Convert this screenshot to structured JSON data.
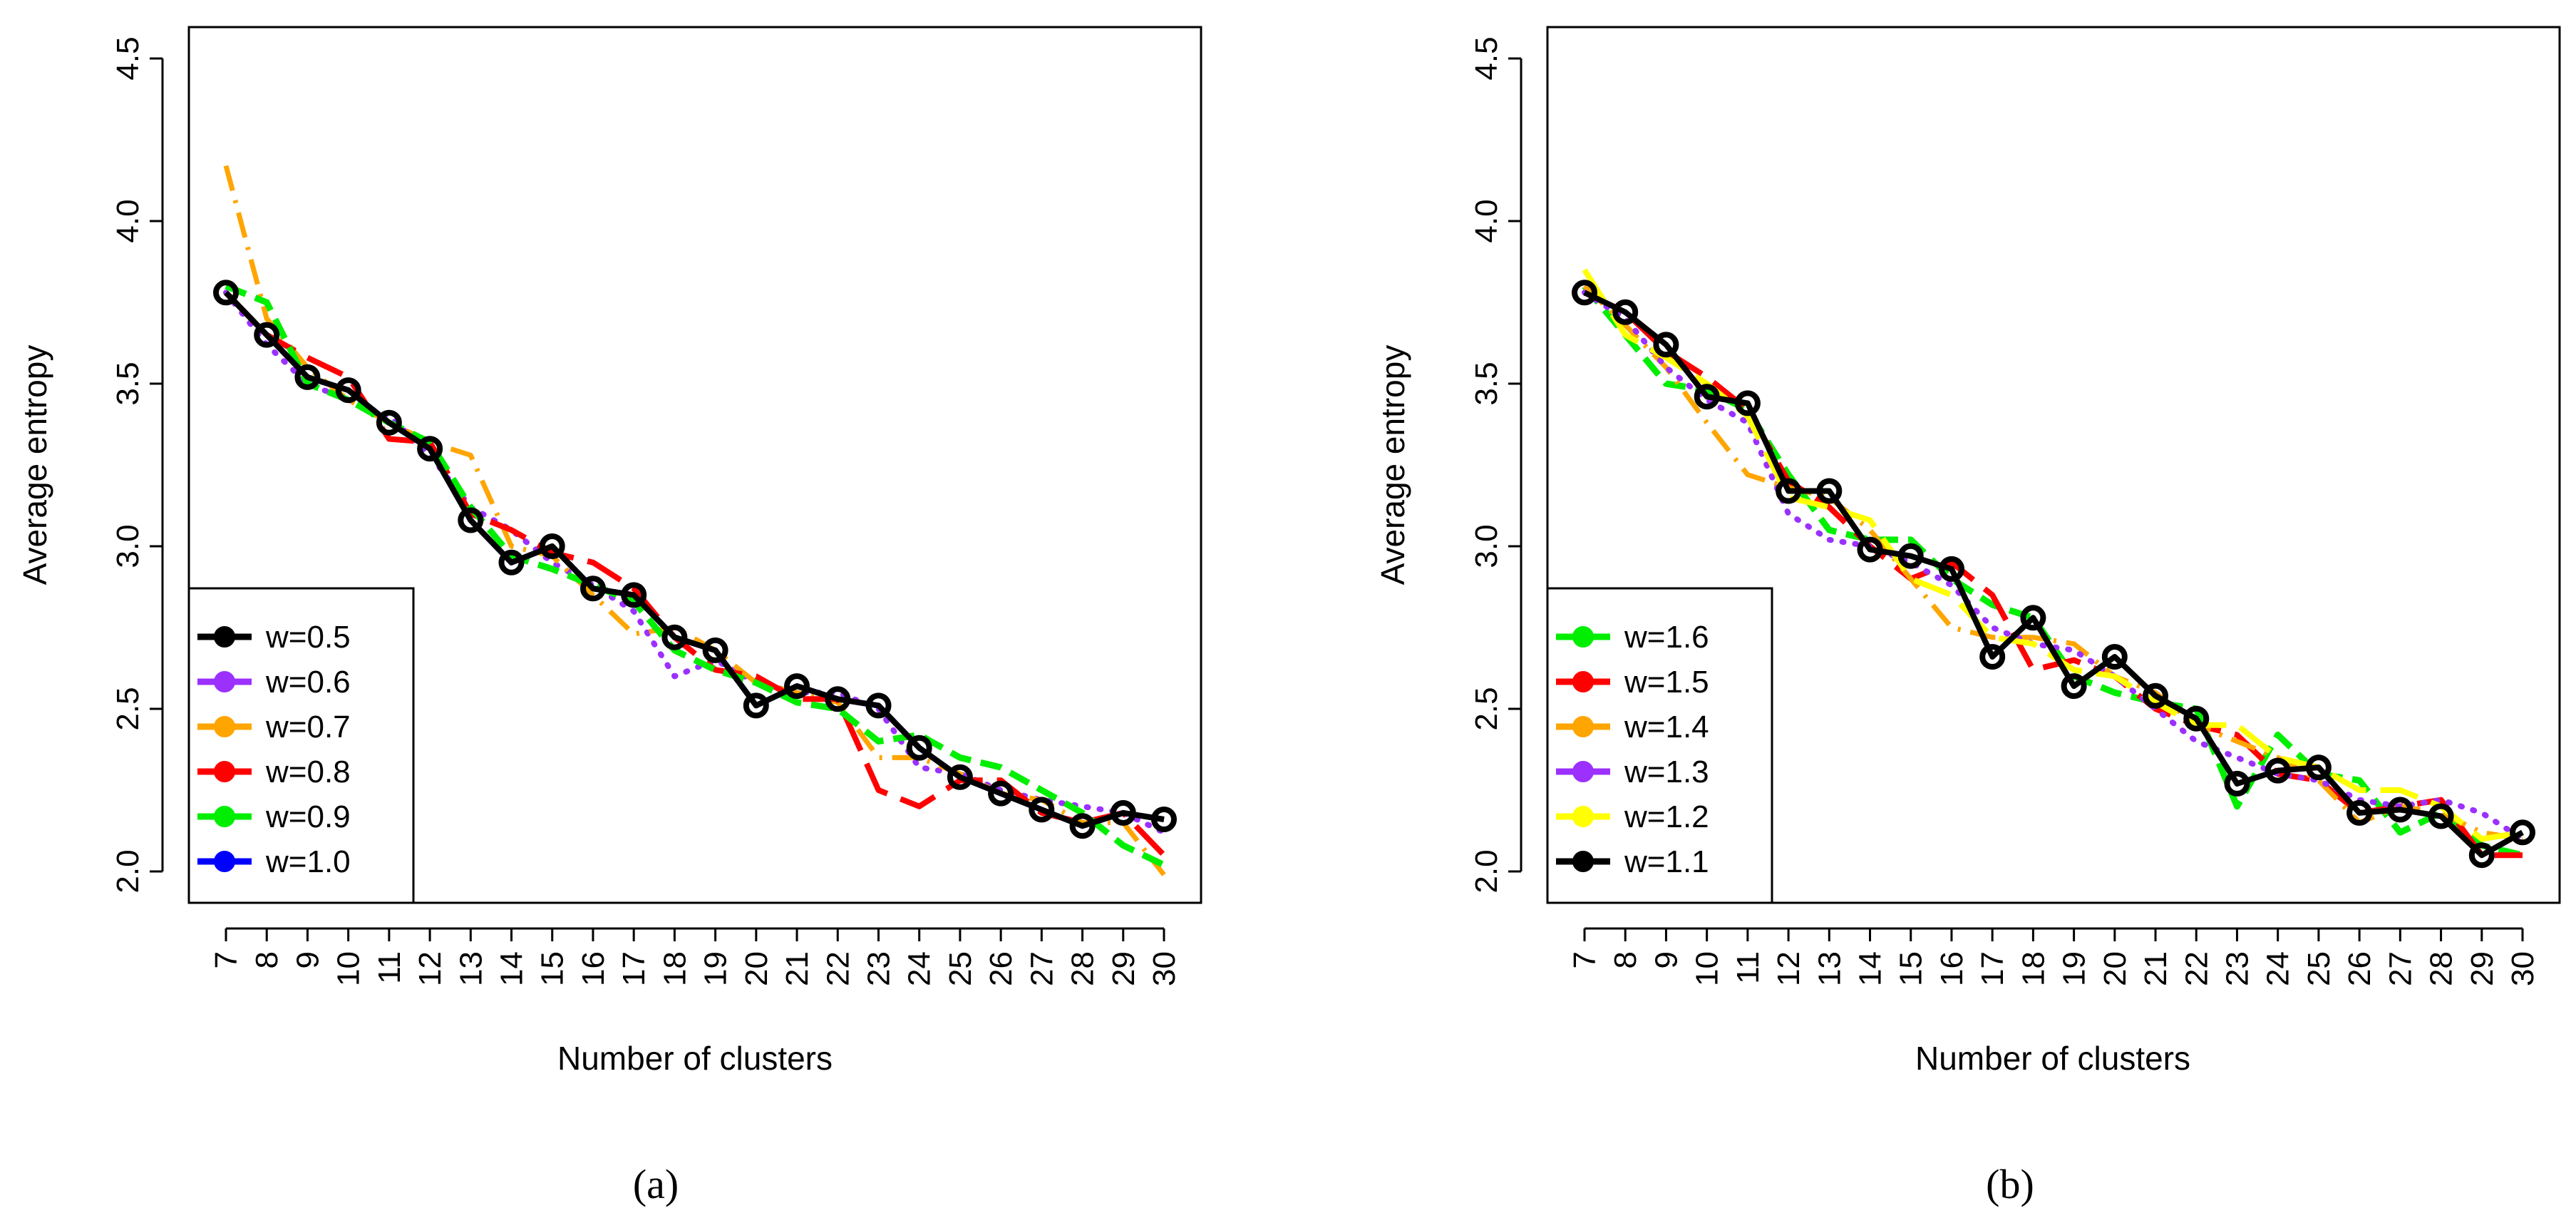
{
  "chart_data": [
    {
      "type": "line",
      "panel_label": "(a)",
      "xlabel": "Number of clusters",
      "ylabel": "Average entropy",
      "x": [
        7,
        8,
        9,
        10,
        11,
        12,
        13,
        14,
        15,
        16,
        17,
        18,
        19,
        20,
        21,
        22,
        23,
        24,
        25,
        26,
        27,
        28,
        29,
        30
      ],
      "x_tick_labels": [
        "7",
        "8",
        "9",
        "10",
        "11",
        "12",
        "13",
        "14",
        "15",
        "16",
        "17",
        "18",
        "19",
        "20",
        "21",
        "22",
        "23",
        "24",
        "25",
        "26",
        "27",
        "28",
        "29",
        "30"
      ],
      "xlim": [
        7,
        30
      ],
      "ylim": [
        2.0,
        4.5
      ],
      "y_ticks": [
        2.0,
        2.5,
        3.0,
        3.5,
        4.0,
        4.5
      ],
      "y_tick_labels": [
        "2.0",
        "2.5",
        "3.0",
        "3.5",
        "4.0",
        "4.5"
      ],
      "legend_position": "bottom-left",
      "series": [
        {
          "name": "w=1.0",
          "color": "#0000ff",
          "style": "solid",
          "markers": false,
          "values": [
            3.78,
            3.65,
            3.52,
            3.48,
            3.38,
            3.3,
            3.08,
            2.95,
            3.0,
            2.87,
            2.85,
            2.72,
            2.68,
            2.51,
            2.57,
            2.53,
            2.51,
            2.38,
            2.29,
            2.24,
            2.19,
            2.14,
            2.18,
            2.16
          ]
        },
        {
          "name": "w=0.6",
          "color": "#9b30ff",
          "style": "dotted",
          "markers": false,
          "values": [
            3.78,
            3.62,
            3.5,
            3.45,
            3.4,
            3.28,
            3.12,
            3.05,
            2.95,
            2.88,
            2.8,
            2.6,
            2.65,
            2.58,
            2.55,
            2.55,
            2.5,
            2.32,
            2.3,
            2.25,
            2.22,
            2.2,
            2.18,
            2.12
          ]
        },
        {
          "name": "w=0.7",
          "color": "#ffa500",
          "style": "dashdot",
          "markers": false,
          "values": [
            4.17,
            3.7,
            3.55,
            3.45,
            3.38,
            3.32,
            3.28,
            3.0,
            2.97,
            2.85,
            2.73,
            2.75,
            2.68,
            2.58,
            2.55,
            2.52,
            2.35,
            2.35,
            2.3,
            2.24,
            2.22,
            2.15,
            2.15,
            1.99
          ]
        },
        {
          "name": "w=0.8",
          "color": "#ff0000",
          "style": "longdash",
          "markers": false,
          "values": [
            3.78,
            3.65,
            3.58,
            3.52,
            3.33,
            3.32,
            3.1,
            3.05,
            2.98,
            2.95,
            2.87,
            2.72,
            2.62,
            2.6,
            2.53,
            2.53,
            2.25,
            2.2,
            2.28,
            2.28,
            2.18,
            2.15,
            2.18,
            2.05
          ]
        },
        {
          "name": "w=0.9",
          "color": "#00ee00",
          "style": "dashed",
          "markers": false,
          "values": [
            3.8,
            3.75,
            3.5,
            3.45,
            3.38,
            3.32,
            3.12,
            2.97,
            2.93,
            2.88,
            2.83,
            2.68,
            2.62,
            2.58,
            2.52,
            2.5,
            2.4,
            2.42,
            2.35,
            2.32,
            2.25,
            2.18,
            2.08,
            2.02
          ]
        },
        {
          "name": "w=0.5",
          "color": "#000000",
          "style": "solid",
          "markers": true,
          "values": [
            3.78,
            3.65,
            3.52,
            3.48,
            3.38,
            3.3,
            3.08,
            2.95,
            3.0,
            2.87,
            2.85,
            2.72,
            2.68,
            2.51,
            2.57,
            2.53,
            2.51,
            2.38,
            2.29,
            2.24,
            2.19,
            2.14,
            2.18,
            2.16
          ]
        }
      ],
      "legend": [
        {
          "name": "w=0.5",
          "color": "#000000"
        },
        {
          "name": "w=0.6",
          "color": "#9b30ff"
        },
        {
          "name": "w=0.7",
          "color": "#ffa500"
        },
        {
          "name": "w=0.8",
          "color": "#ff0000"
        },
        {
          "name": "w=0.9",
          "color": "#00ee00"
        },
        {
          "name": "w=1.0",
          "color": "#0000ff"
        }
      ]
    },
    {
      "type": "line",
      "panel_label": "(b)",
      "xlabel": "Number of clusters",
      "ylabel": "Average entropy",
      "x": [
        7,
        8,
        9,
        10,
        11,
        12,
        13,
        14,
        15,
        16,
        17,
        18,
        19,
        20,
        21,
        22,
        23,
        24,
        25,
        26,
        27,
        28,
        29,
        30
      ],
      "x_tick_labels": [
        "7",
        "8",
        "9",
        "10",
        "11",
        "12",
        "13",
        "14",
        "15",
        "16",
        "17",
        "18",
        "19",
        "20",
        "21",
        "22",
        "23",
        "24",
        "25",
        "26",
        "27",
        "28",
        "29",
        "30"
      ],
      "xlim": [
        7,
        30
      ],
      "ylim": [
        2.0,
        4.5
      ],
      "y_ticks": [
        2.0,
        2.5,
        3.0,
        3.5,
        4.0,
        4.5
      ],
      "y_tick_labels": [
        "2.0",
        "2.5",
        "3.0",
        "3.5",
        "4.0",
        "4.5"
      ],
      "legend_position": "bottom-left",
      "series": [
        {
          "name": "w=1.6",
          "color": "#00ee00",
          "style": "dashed",
          "markers": false,
          "values": [
            3.8,
            3.65,
            3.5,
            3.48,
            3.42,
            3.22,
            3.05,
            3.02,
            3.02,
            2.9,
            2.82,
            2.78,
            2.6,
            2.55,
            2.52,
            2.5,
            2.2,
            2.42,
            2.3,
            2.28,
            2.12,
            2.18,
            2.08,
            2.05
          ]
        },
        {
          "name": "w=1.5",
          "color": "#ff0000",
          "style": "longdash",
          "markers": false,
          "values": [
            3.78,
            3.72,
            3.6,
            3.52,
            3.42,
            3.2,
            3.12,
            3.0,
            2.9,
            2.95,
            2.85,
            2.62,
            2.65,
            2.6,
            2.5,
            2.45,
            2.42,
            2.3,
            2.28,
            2.18,
            2.2,
            2.22,
            2.05,
            2.05
          ]
        },
        {
          "name": "w=1.4",
          "color": "#ffa500",
          "style": "dashdot",
          "markers": false,
          "values": [
            3.8,
            3.68,
            3.55,
            3.38,
            3.22,
            3.18,
            3.15,
            3.05,
            2.9,
            2.75,
            2.72,
            2.72,
            2.7,
            2.6,
            2.55,
            2.45,
            2.4,
            2.35,
            2.28,
            2.15,
            2.2,
            2.18,
            2.12,
            2.1
          ]
        },
        {
          "name": "w=1.3",
          "color": "#9b30ff",
          "style": "dotted",
          "markers": false,
          "values": [
            3.78,
            3.7,
            3.55,
            3.45,
            3.38,
            3.1,
            3.02,
            3.0,
            2.95,
            2.88,
            2.75,
            2.7,
            2.68,
            2.6,
            2.5,
            2.4,
            2.35,
            2.3,
            2.28,
            2.22,
            2.2,
            2.22,
            2.18,
            2.1
          ]
        },
        {
          "name": "w=1.2",
          "color": "#ffff00",
          "style": "longdash",
          "markers": false,
          "values": [
            3.85,
            3.65,
            3.58,
            3.5,
            3.4,
            3.15,
            3.12,
            3.08,
            2.9,
            2.85,
            2.72,
            2.7,
            2.62,
            2.6,
            2.52,
            2.45,
            2.45,
            2.35,
            2.32,
            2.25,
            2.25,
            2.2,
            2.1,
            2.12
          ]
        },
        {
          "name": "w=1.1",
          "color": "#000000",
          "style": "solid",
          "markers": true,
          "values": [
            3.78,
            3.72,
            3.62,
            3.46,
            3.44,
            3.17,
            3.17,
            2.99,
            2.97,
            2.93,
            2.66,
            2.78,
            2.57,
            2.66,
            2.54,
            2.47,
            2.27,
            2.31,
            2.32,
            2.18,
            2.19,
            2.17,
            2.05,
            2.12
          ]
        }
      ],
      "legend": [
        {
          "name": "w=1.6",
          "color": "#00ee00"
        },
        {
          "name": "w=1.5",
          "color": "#ff0000"
        },
        {
          "name": "w=1.4",
          "color": "#ffa500"
        },
        {
          "name": "w=1.3",
          "color": "#9b30ff"
        },
        {
          "name": "w=1.2",
          "color": "#ffff00"
        },
        {
          "name": "w=1.1",
          "color": "#000000"
        }
      ]
    }
  ]
}
